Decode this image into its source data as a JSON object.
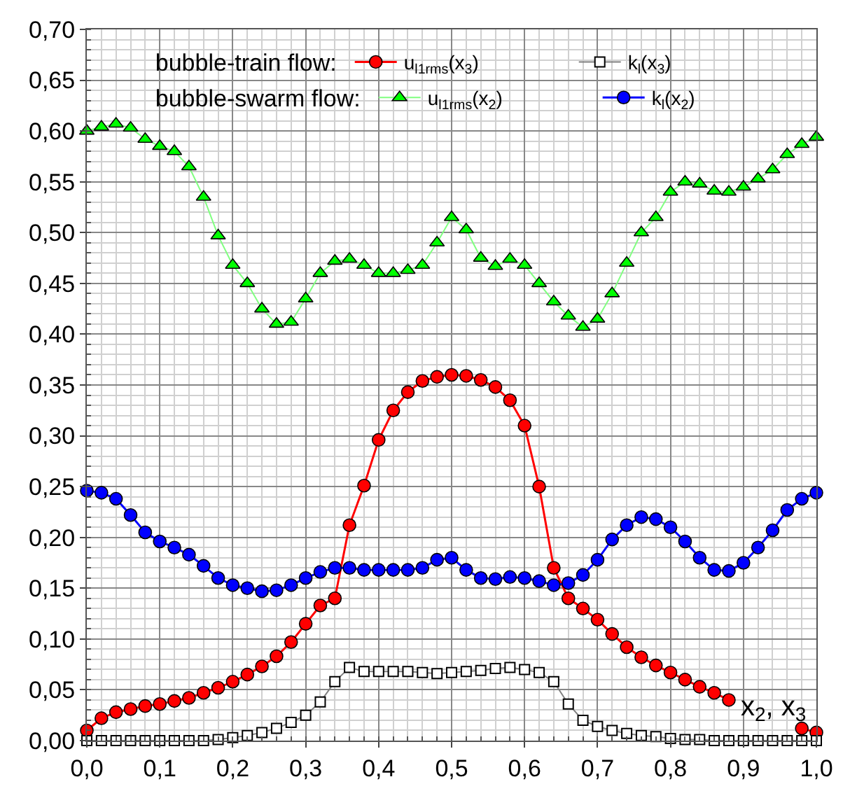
{
  "chart_data": {
    "type": "line",
    "xlabel": "x$_{2}$, x$_{3}$",
    "x": [
      0,
      0.02,
      0.04,
      0.06,
      0.08,
      0.1,
      0.12,
      0.14,
      0.16,
      0.18,
      0.2,
      0.22,
      0.24,
      0.26,
      0.28,
      0.3,
      0.32,
      0.34,
      0.36,
      0.38,
      0.4,
      0.42,
      0.44,
      0.46,
      0.48,
      0.5,
      0.52,
      0.54,
      0.56,
      0.58,
      0.6,
      0.62,
      0.64,
      0.66,
      0.68,
      0.7,
      0.72,
      0.74,
      0.76,
      0.78,
      0.8,
      0.82,
      0.84,
      0.86,
      0.88,
      0.9,
      0.92,
      0.94,
      0.96,
      0.98,
      1.0
    ],
    "series": [
      {
        "name": "u$_{l1rms}$(x$_{3}$)",
        "color": "#ff0000",
        "marker": "circle",
        "values": [
          0.01,
          0.022,
          0.028,
          0.031,
          0.034,
          0.036,
          0.039,
          0.042,
          0.047,
          0.052,
          0.058,
          0.065,
          0.073,
          0.083,
          0.097,
          0.115,
          0.133,
          0.14,
          0.212,
          0.251,
          0.296,
          0.325,
          0.343,
          0.354,
          0.358,
          0.36,
          0.359,
          0.355,
          0.348,
          0.335,
          0.31,
          0.25,
          0.17,
          0.14,
          0.13,
          0.119,
          0.105,
          0.092,
          0.082,
          0.074,
          0.067,
          0.06,
          0.053,
          0.047,
          0.04,
          null,
          null,
          null,
          null,
          0.012,
          0.008
        ]
      },
      {
        "name": "k$_{l}$(x$_{3}$)",
        "color": "#000000",
        "marker": "square",
        "values": [
          0.0,
          0.0,
          0.0,
          0.0,
          0.0,
          0.0,
          0.0,
          0.0,
          0.0,
          0.001,
          0.003,
          0.005,
          0.008,
          0.012,
          0.018,
          0.025,
          0.038,
          0.058,
          0.072,
          0.068,
          0.068,
          0.068,
          0.068,
          0.067,
          0.066,
          0.067,
          0.068,
          0.069,
          0.071,
          0.072,
          0.07,
          0.067,
          0.058,
          0.036,
          0.02,
          0.014,
          0.01,
          0.007,
          0.005,
          0.004,
          0.002,
          0.001,
          0.001,
          0.0,
          0.0,
          0.0,
          0.0,
          0.0,
          0.0,
          0.0,
          0.0
        ]
      },
      {
        "name": "u$_{l1rms}$(x$_{2}$)",
        "color": "#00ff00",
        "marker": "triangle",
        "values": [
          0.6,
          0.604,
          0.607,
          0.603,
          0.592,
          0.585,
          0.58,
          0.565,
          0.535,
          0.497,
          0.468,
          0.45,
          0.425,
          0.41,
          0.412,
          0.435,
          0.46,
          0.472,
          0.474,
          0.468,
          0.46,
          0.46,
          0.463,
          0.468,
          0.49,
          0.515,
          0.503,
          0.475,
          0.467,
          0.474,
          0.468,
          0.45,
          0.432,
          0.418,
          0.407,
          0.415,
          0.44,
          0.47,
          0.5,
          0.515,
          0.54,
          0.55,
          0.548,
          0.541,
          0.54,
          0.545,
          0.553,
          0.562,
          0.577,
          0.587,
          0.594
        ]
      },
      {
        "name": "k$_{l}$(x$_{2}$)",
        "color": "#0000ff",
        "marker": "circle",
        "values": [
          0.246,
          0.244,
          0.238,
          0.222,
          0.205,
          0.196,
          0.19,
          0.183,
          0.172,
          0.16,
          0.153,
          0.15,
          0.147,
          0.148,
          0.153,
          0.16,
          0.166,
          0.17,
          0.17,
          0.168,
          0.168,
          0.168,
          0.168,
          0.17,
          0.178,
          0.18,
          0.168,
          0.16,
          0.159,
          0.161,
          0.16,
          0.157,
          0.153,
          0.155,
          0.163,
          0.178,
          0.198,
          0.212,
          0.22,
          0.218,
          0.21,
          0.196,
          0.18,
          0.168,
          0.167,
          0.175,
          0.19,
          0.207,
          0.227,
          0.238,
          0.244
        ]
      }
    ],
    "annotations": [
      "bubble-train flow:",
      "bubble-swarm flow:"
    ],
    "xlim": [
      0,
      1
    ],
    "xticks": [
      {
        "value": 0,
        "label": "0,0"
      },
      {
        "value": 0.1,
        "label": "0,1"
      },
      {
        "value": 0.2,
        "label": "0,2"
      },
      {
        "value": 0.3,
        "label": "0,3"
      },
      {
        "value": 0.4,
        "label": "0,4"
      },
      {
        "value": 0.5,
        "label": "0,5"
      },
      {
        "value": 0.6,
        "label": "0,6"
      },
      {
        "value": 0.7,
        "label": "0,7"
      },
      {
        "value": 0.8,
        "label": "0,8"
      },
      {
        "value": 0.9,
        "label": "0,9"
      },
      {
        "value": 1.0,
        "label": "1,0"
      }
    ],
    "ylim": [
      0,
      0.7
    ],
    "yticks": [
      {
        "value": 0,
        "label": "0,00"
      },
      {
        "value": 0.05,
        "label": "0,05"
      },
      {
        "value": 0.1,
        "label": "0,10"
      },
      {
        "value": 0.15,
        "label": "0,15"
      },
      {
        "value": 0.2,
        "label": "0,20"
      },
      {
        "value": 0.25,
        "label": "0,25"
      },
      {
        "value": 0.3,
        "label": "0,30"
      },
      {
        "value": 0.35,
        "label": "0,35"
      },
      {
        "value": 0.4,
        "label": "0,40"
      },
      {
        "value": 0.45,
        "label": "0,45"
      },
      {
        "value": 0.5,
        "label": "0,50"
      },
      {
        "value": 0.55,
        "label": "0,55"
      },
      {
        "value": 0.6,
        "label": "0,60"
      },
      {
        "value": 0.65,
        "label": "0,65"
      },
      {
        "value": 0.7,
        "label": "0,70"
      }
    ],
    "grid": true,
    "legend": "top"
  }
}
